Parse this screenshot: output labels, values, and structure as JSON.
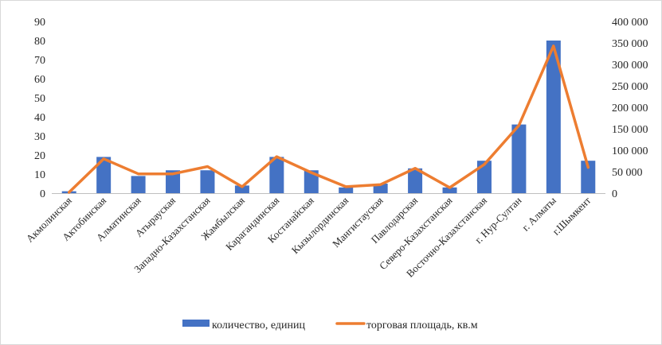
{
  "chart_data": {
    "type": "bar+line",
    "categories": [
      "Акмолинская",
      "Актобинская",
      "Алматинская",
      "Атырауская",
      "Западно-Казахстанская",
      "Жамбылская",
      "Карагандинская",
      "Костанайская",
      "Кызылординская",
      "Мангистауская",
      "Павлодарская",
      "Северо-Казахстанская",
      "Восточно-Казахстанская",
      "г. Нур-Султан",
      "г. Алматы",
      "г.Шымкент"
    ],
    "series": [
      {
        "name": "количество, единиц",
        "type": "bar",
        "axis": "left",
        "color": "#4472C4",
        "values": [
          1,
          19,
          9,
          12,
          12,
          4,
          19,
          12,
          3,
          5,
          13,
          3,
          17,
          36,
          80,
          17
        ]
      },
      {
        "name": "торговая площадь, кв.м",
        "type": "line",
        "axis": "right",
        "color": "#ED7D31",
        "values": [
          2000,
          80000,
          45000,
          45000,
          62000,
          15000,
          85000,
          48000,
          15000,
          20000,
          58000,
          13000,
          67000,
          158000,
          343000,
          60000
        ]
      }
    ],
    "y_left": {
      "min": 0,
      "max": 90,
      "step": 10,
      "ticks": [
        "0",
        "10",
        "20",
        "30",
        "40",
        "50",
        "60",
        "70",
        "80",
        "90"
      ]
    },
    "y_right": {
      "min": 0,
      "max": 400000,
      "step": 50000,
      "ticks": [
        "0",
        "50 000",
        "100 000",
        "150 000",
        "200 000",
        "250 000",
        "300 000",
        "350 000",
        "400 000"
      ]
    },
    "legend_position": "bottom",
    "grid": false
  }
}
